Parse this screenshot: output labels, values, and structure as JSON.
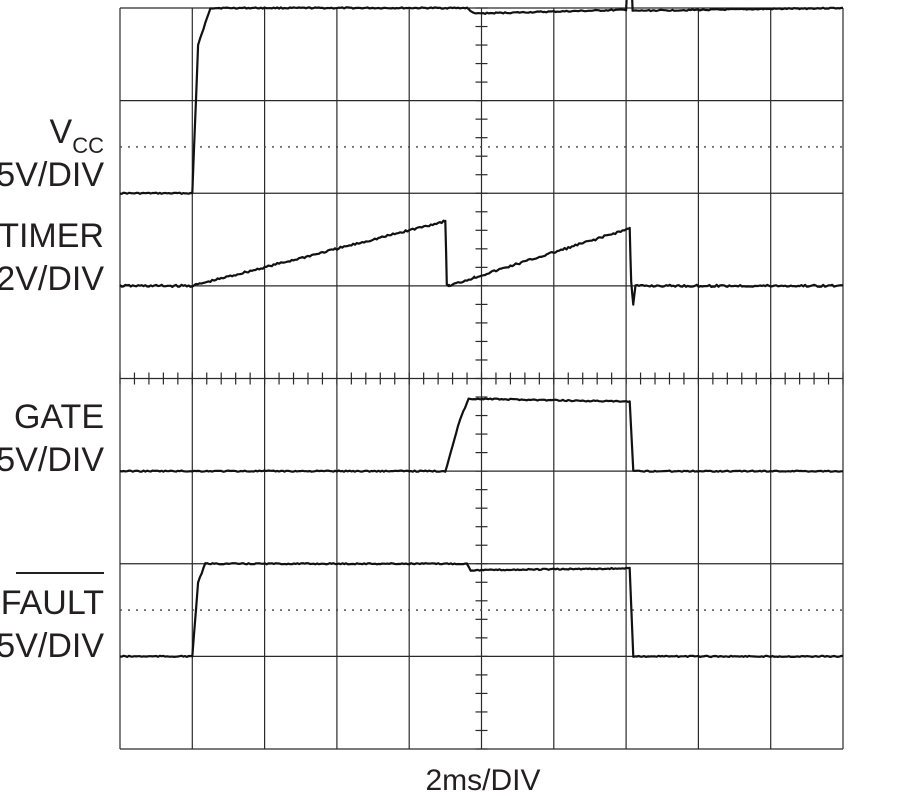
{
  "chart_data": {
    "type": "line",
    "xlabel": "2ms/DIV",
    "x_divisions": 10,
    "y_divisions": 8,
    "grid": true,
    "center_graticule_ticks": true,
    "series": [
      {
        "name": "V_CC",
        "label_main": "V",
        "label_sub": "CC",
        "scale": "5V/DIV",
        "ground_level_div": 5.5,
        "points": [
          [
            0,
            0
          ],
          [
            1,
            0
          ],
          [
            1.08,
            1.6
          ],
          [
            1.25,
            2
          ],
          [
            4.8,
            2
          ],
          [
            4.9,
            1.94
          ],
          [
            7.0,
            1.98
          ],
          [
            7.05,
            2.8
          ],
          [
            7.09,
            1.97
          ],
          [
            10,
            2
          ]
        ]
      },
      {
        "name": "TIMER",
        "scale": "2V/DIV",
        "ground_level_div": 3.3,
        "points": [
          [
            0,
            0
          ],
          [
            1,
            0
          ],
          [
            4.5,
            0.7
          ],
          [
            4.52,
            0.02
          ],
          [
            4.55,
            0
          ],
          [
            4.9,
            0.09
          ],
          [
            7.05,
            0.62
          ],
          [
            7.07,
            0.05
          ],
          [
            7.1,
            -0.2
          ],
          [
            7.13,
            0
          ],
          [
            10,
            0
          ]
        ]
      },
      {
        "name": "GATE",
        "scale": "5V/DIV",
        "ground_level_div": 0.85,
        "points": [
          [
            0,
            0
          ],
          [
            4.5,
            0
          ],
          [
            4.7,
            0.55
          ],
          [
            4.82,
            0.78
          ],
          [
            5.0,
            0.78
          ],
          [
            7.05,
            0.75
          ],
          [
            7.1,
            0
          ],
          [
            10,
            0
          ]
        ]
      },
      {
        "name": "FAULT",
        "overbar": true,
        "scale": "5V/DIV",
        "ground_level_div": 3.1,
        "points": [
          [
            0,
            0
          ],
          [
            1,
            0
          ],
          [
            1.08,
            0.8
          ],
          [
            1.18,
            1.0
          ],
          [
            4.8,
            1.0
          ],
          [
            4.85,
            0.93
          ],
          [
            7.05,
            0.95
          ],
          [
            7.1,
            0
          ],
          [
            10,
            0
          ]
        ]
      }
    ]
  }
}
